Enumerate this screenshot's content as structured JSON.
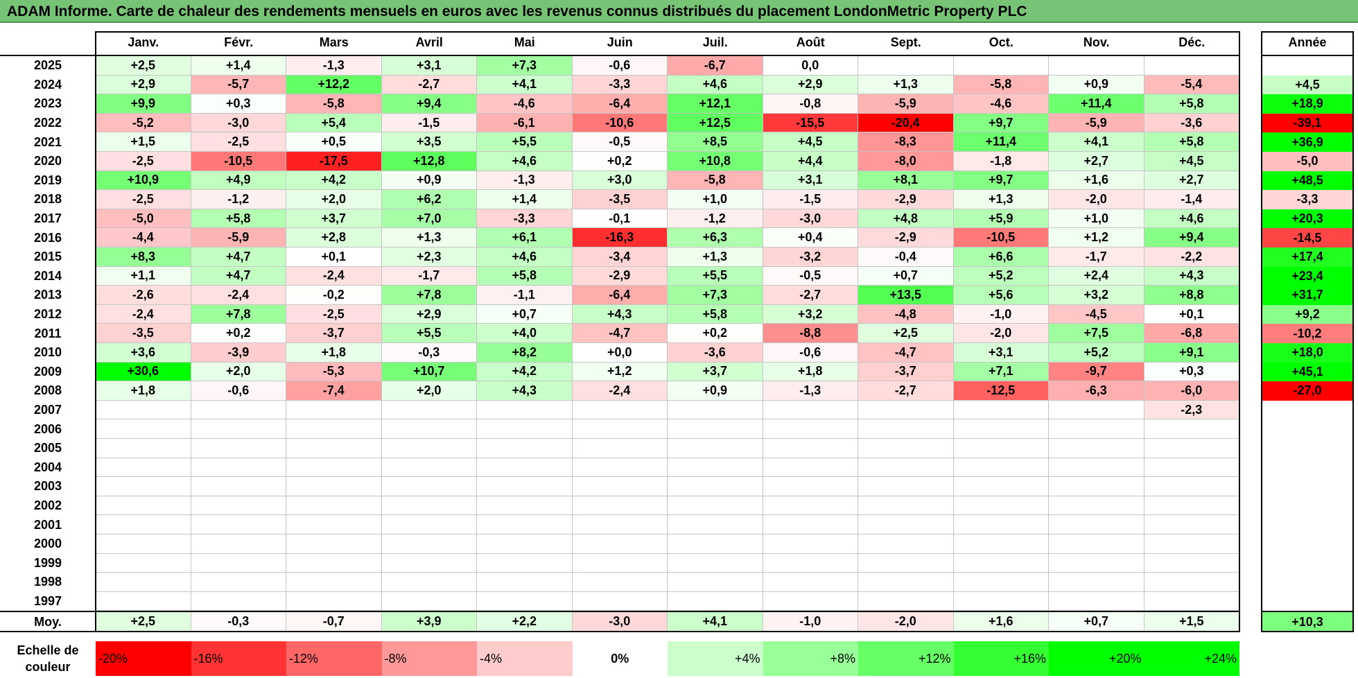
{
  "title": "ADAM Informe. Carte de chaleur des rendements mensuels en euros avec les revenus connus distribués du placement LondonMetric Property PLC",
  "chart_data": {
    "type": "heatmap",
    "columns": [
      "Janv.",
      "Févr.",
      "Mars",
      "Avril",
      "Mai",
      "Juin",
      "Juil.",
      "Août",
      "Sept.",
      "Oct.",
      "Nov.",
      "Déc."
    ],
    "year_header": "Année",
    "rows": [
      {
        "year": "2025",
        "months": [
          "+2,5",
          "+1,4",
          "-1,3",
          "+3,1",
          "+7,3",
          "-0,6",
          "-6,7",
          "0,0",
          "",
          "",
          "",
          ""
        ],
        "annual": ""
      },
      {
        "year": "2024",
        "months": [
          "+2,9",
          "-5,7",
          "+12,2",
          "-2,7",
          "+4,1",
          "-3,3",
          "+4,6",
          "+2,9",
          "+1,3",
          "-5,8",
          "+0,9",
          "-5,4"
        ],
        "annual": "+4,5"
      },
      {
        "year": "2023",
        "months": [
          "+9,9",
          "+0,3",
          "-5,8",
          "+9,4",
          "-4,6",
          "-6,4",
          "+12,1",
          "-0,8",
          "-5,9",
          "-4,6",
          "+11,4",
          "+5,8"
        ],
        "annual": "+18,9"
      },
      {
        "year": "2022",
        "months": [
          "-5,2",
          "-3,0",
          "+5,4",
          "-1,5",
          "-6,1",
          "-10,6",
          "+12,5",
          "-15,5",
          "-20,4",
          "+9,7",
          "-5,9",
          "-3,6"
        ],
        "annual": "-39,1"
      },
      {
        "year": "2021",
        "months": [
          "+1,5",
          "-2,5",
          "+0,5",
          "+3,5",
          "+5,5",
          "-0,5",
          "+8,5",
          "+4,5",
          "-8,3",
          "+11,4",
          "+4,1",
          "+5,8"
        ],
        "annual": "+36,9"
      },
      {
        "year": "2020",
        "months": [
          "-2,5",
          "-10,5",
          "-17,5",
          "+12,8",
          "+4,6",
          "+0,2",
          "+10,8",
          "+4,4",
          "-8,0",
          "-1,8",
          "+2,7",
          "+4,5"
        ],
        "annual": "-5,0"
      },
      {
        "year": "2019",
        "months": [
          "+10,9",
          "+4,9",
          "+4,2",
          "+0,9",
          "-1,3",
          "+3,0",
          "-5,8",
          "+3,1",
          "+8,1",
          "+9,7",
          "+1,6",
          "+2,7"
        ],
        "annual": "+48,5"
      },
      {
        "year": "2018",
        "months": [
          "-2,5",
          "-1,2",
          "+2,0",
          "+6,2",
          "+1,4",
          "-3,5",
          "+1,0",
          "-1,5",
          "-2,9",
          "+1,3",
          "-2,0",
          "-1,4"
        ],
        "annual": "-3,3"
      },
      {
        "year": "2017",
        "months": [
          "-5,0",
          "+5,8",
          "+3,7",
          "+7,0",
          "-3,3",
          "-0,1",
          "-1,2",
          "-3,0",
          "+4,8",
          "+5,9",
          "+1,0",
          "+4,6"
        ],
        "annual": "+20,3"
      },
      {
        "year": "2016",
        "months": [
          "-4,4",
          "-5,9",
          "+2,8",
          "+1,3",
          "+6,1",
          "-16,3",
          "+6,3",
          "+0,4",
          "-2,9",
          "-10,5",
          "+1,2",
          "+9,4"
        ],
        "annual": "-14,5"
      },
      {
        "year": "2015",
        "months": [
          "+8,3",
          "+4,7",
          "+0,1",
          "+2,3",
          "+4,6",
          "-3,4",
          "+1,3",
          "-3,2",
          "-0,4",
          "+6,6",
          "-1,7",
          "-2,2"
        ],
        "annual": "+17,4"
      },
      {
        "year": "2014",
        "months": [
          "+1,1",
          "+4,7",
          "-2,4",
          "-1,7",
          "+5,8",
          "-2,9",
          "+5,5",
          "-0,5",
          "+0,7",
          "+5,2",
          "+2,4",
          "+4,3"
        ],
        "annual": "+23,4"
      },
      {
        "year": "2013",
        "months": [
          "-2,6",
          "-2,4",
          "-0,2",
          "+7,8",
          "-1,1",
          "-6,4",
          "+7,3",
          "-2,7",
          "+13,5",
          "+5,6",
          "+3,2",
          "+8,8"
        ],
        "annual": "+31,7"
      },
      {
        "year": "2012",
        "months": [
          "-2,4",
          "+7,8",
          "-2,5",
          "+2,9",
          "+0,7",
          "+4,3",
          "+5,8",
          "+3,2",
          "-4,8",
          "-1,0",
          "-4,5",
          "+0,1"
        ],
        "annual": "+9,2"
      },
      {
        "year": "2011",
        "months": [
          "-3,5",
          "+0,2",
          "-3,7",
          "+5,5",
          "+4,0",
          "-4,7",
          "+0,2",
          "-8,8",
          "+2,5",
          "-2,0",
          "+7,5",
          "-6,8"
        ],
        "annual": "-10,2"
      },
      {
        "year": "2010",
        "months": [
          "+3,6",
          "-3,9",
          "+1,8",
          "-0,3",
          "+8,2",
          "+0,0",
          "-3,6",
          "-0,6",
          "-4,7",
          "+3,1",
          "+5,2",
          "+9,1"
        ],
        "annual": "+18,0"
      },
      {
        "year": "2009",
        "months": [
          "+30,6",
          "+2,0",
          "-5,3",
          "+10,7",
          "+4,2",
          "+1,2",
          "+3,7",
          "+1,8",
          "-3,7",
          "+7,1",
          "-9,7",
          "+0,3"
        ],
        "annual": "+45,1"
      },
      {
        "year": "2008",
        "months": [
          "+1,8",
          "-0,6",
          "-7,4",
          "+2,0",
          "+4,3",
          "-2,4",
          "+0,9",
          "-1,3",
          "-2,7",
          "-12,5",
          "-6,3",
          "-6,0"
        ],
        "annual": "-27,0"
      },
      {
        "year": "2007",
        "months": [
          "",
          "",
          "",
          "",
          "",
          "",
          "",
          "",
          "",
          "",
          "",
          "-2,3"
        ],
        "annual": ""
      },
      {
        "year": "2006",
        "months": [
          "",
          "",
          "",
          "",
          "",
          "",
          "",
          "",
          "",
          "",
          "",
          ""
        ],
        "annual": ""
      },
      {
        "year": "2005",
        "months": [
          "",
          "",
          "",
          "",
          "",
          "",
          "",
          "",
          "",
          "",
          "",
          ""
        ],
        "annual": ""
      },
      {
        "year": "2004",
        "months": [
          "",
          "",
          "",
          "",
          "",
          "",
          "",
          "",
          "",
          "",
          "",
          ""
        ],
        "annual": ""
      },
      {
        "year": "2003",
        "months": [
          "",
          "",
          "",
          "",
          "",
          "",
          "",
          "",
          "",
          "",
          "",
          ""
        ],
        "annual": ""
      },
      {
        "year": "2002",
        "months": [
          "",
          "",
          "",
          "",
          "",
          "",
          "",
          "",
          "",
          "",
          "",
          ""
        ],
        "annual": ""
      },
      {
        "year": "2001",
        "months": [
          "",
          "",
          "",
          "",
          "",
          "",
          "",
          "",
          "",
          "",
          "",
          ""
        ],
        "annual": ""
      },
      {
        "year": "2000",
        "months": [
          "",
          "",
          "",
          "",
          "",
          "",
          "",
          "",
          "",
          "",
          "",
          ""
        ],
        "annual": ""
      },
      {
        "year": "1999",
        "months": [
          "",
          "",
          "",
          "",
          "",
          "",
          "",
          "",
          "",
          "",
          "",
          ""
        ],
        "annual": ""
      },
      {
        "year": "1998",
        "months": [
          "",
          "",
          "",
          "",
          "",
          "",
          "",
          "",
          "",
          "",
          "",
          ""
        ],
        "annual": ""
      },
      {
        "year": "1997",
        "months": [
          "",
          "",
          "",
          "",
          "",
          "",
          "",
          "",
          "",
          "",
          "",
          ""
        ],
        "annual": ""
      }
    ],
    "average": {
      "label": "Moy.",
      "months": [
        "+2,5",
        "-0,3",
        "-0,7",
        "+3,9",
        "+2,2",
        "-3,0",
        "+4,1",
        "-1,0",
        "-2,0",
        "+1,6",
        "+0,7",
        "+1,5"
      ],
      "annual": "+10,3"
    },
    "legend": {
      "label": "Echelle de couleur",
      "steps": [
        {
          "label": "-20%",
          "value": -20
        },
        {
          "label": "-16%",
          "value": -16
        },
        {
          "label": "-12%",
          "value": -12
        },
        {
          "label": "-8%",
          "value": -8
        },
        {
          "label": "-4%",
          "value": -4
        },
        {
          "label": "0%",
          "value": 0
        },
        {
          "label": "+4%",
          "value": 4
        },
        {
          "label": "+8%",
          "value": 8
        },
        {
          "label": "+12%",
          "value": 12
        },
        {
          "label": "+16%",
          "value": 16
        },
        {
          "label": "+20%",
          "value": 20
        },
        {
          "label": "+24%",
          "value": 24
        }
      ]
    },
    "color_scale": {
      "negative_max": "#ff0000",
      "neutral": "#ffffff",
      "positive_max": "#00ff00"
    }
  }
}
